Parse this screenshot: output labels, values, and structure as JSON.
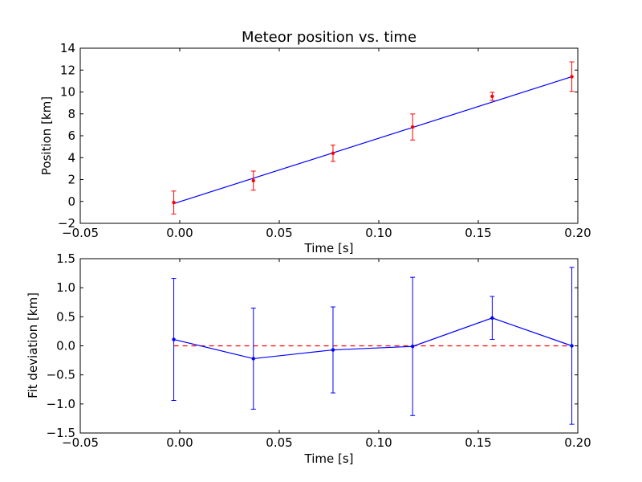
{
  "chart_data": [
    {
      "type": "scatter",
      "title": "Meteor position vs. time",
      "xlabel": "Time [s]",
      "ylabel": "Position [km]",
      "xlim": [
        -0.05,
        0.2
      ],
      "ylim": [
        -2,
        14
      ],
      "xticks": [
        "-0.05",
        "0.00",
        "0.05",
        "0.10",
        "0.15",
        "0.20"
      ],
      "yticks": [
        "-2",
        "0",
        "2",
        "4",
        "6",
        "8",
        "10",
        "12",
        "14"
      ],
      "grid": false,
      "series": [
        {
          "kind": "errorbar",
          "color": "#ff0000",
          "x": [
            -0.003,
            0.037,
            0.077,
            0.117,
            0.157,
            0.197
          ],
          "y": [
            -0.1,
            1.9,
            4.4,
            6.8,
            9.6,
            11.4
          ],
          "yerr": [
            1.05,
            0.87,
            0.74,
            1.19,
            0.37,
            1.35
          ]
        },
        {
          "kind": "line",
          "color": "#0000ff",
          "x": [
            -0.003,
            0.197
          ],
          "y": [
            -0.2,
            11.4
          ]
        }
      ]
    },
    {
      "type": "line",
      "title": "",
      "xlabel": "Time [s]",
      "ylabel": "Fit deviation [km]",
      "xlim": [
        -0.05,
        0.2
      ],
      "ylim": [
        -1.5,
        1.5
      ],
      "xticks": [
        "-0.05",
        "0.00",
        "0.05",
        "0.10",
        "0.15",
        "0.20"
      ],
      "yticks": [
        "-1.5",
        "-1.0",
        "-0.5",
        "0.0",
        "0.5",
        "1.0",
        "1.5"
      ],
      "grid": false,
      "series": [
        {
          "kind": "errorbar-line",
          "color": "#0000ff",
          "x": [
            -0.003,
            0.037,
            0.077,
            0.117,
            0.157,
            0.197
          ],
          "y": [
            0.11,
            -0.22,
            -0.07,
            -0.01,
            0.48,
            0.0
          ],
          "yerr": [
            1.05,
            0.87,
            0.74,
            1.19,
            0.37,
            1.35
          ]
        },
        {
          "kind": "reference-line",
          "color": "#ff0000",
          "style": "dashed",
          "x": [
            -0.003,
            0.197
          ],
          "y": [
            0,
            0
          ]
        }
      ]
    }
  ]
}
